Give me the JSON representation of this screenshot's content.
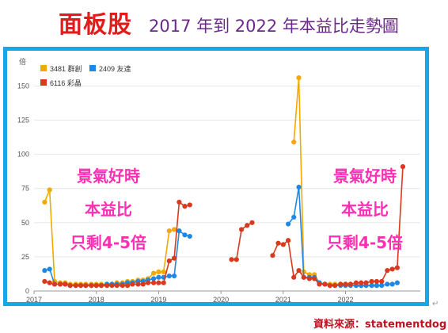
{
  "header": {
    "title": "面板股",
    "subtitle": "2017 年到 2022 年本益比走勢圖",
    "paragraph_mark": "↵"
  },
  "source": {
    "text": "資料來源：statementdog",
    "paragraph_mark": "↵"
  },
  "chart_data": {
    "type": "line",
    "ylabel": "倍",
    "xlabel": "",
    "ylim": [
      0,
      170
    ],
    "y_ticks": [
      0,
      25,
      50,
      75,
      100,
      125,
      150
    ],
    "xlim": [
      2017,
      2023.2
    ],
    "x_ticks": [
      "2017",
      "2018",
      "2019",
      "2020",
      "2021",
      "2022"
    ],
    "grid": true,
    "legend_position": "top-left",
    "annotations": [
      {
        "lines": [
          "景氣好時",
          "本益比",
          "只剩4-5倍"
        ],
        "position": "left"
      },
      {
        "lines": [
          "景氣好時",
          "本益比",
          "只剩4-5倍"
        ],
        "position": "right"
      }
    ],
    "series": [
      {
        "name": "3481 群創",
        "color": "#f2a900",
        "points": [
          [
            2017.17,
            65
          ],
          [
            2017.25,
            74
          ],
          [
            2017.33,
            7
          ],
          [
            2017.42,
            6
          ],
          [
            2017.5,
            6
          ],
          [
            2017.58,
            5
          ],
          [
            2017.67,
            5
          ],
          [
            2017.75,
            5
          ],
          [
            2017.83,
            5
          ],
          [
            2017.92,
            5
          ],
          [
            2018.0,
            5
          ],
          [
            2018.08,
            5
          ],
          [
            2018.17,
            5
          ],
          [
            2018.25,
            5
          ],
          [
            2018.33,
            6
          ],
          [
            2018.42,
            6
          ],
          [
            2018.5,
            7
          ],
          [
            2018.58,
            7
          ],
          [
            2018.67,
            8
          ],
          [
            2018.75,
            8
          ],
          [
            2018.83,
            9
          ],
          [
            2018.92,
            13
          ],
          [
            2019.0,
            14
          ],
          [
            2019.08,
            14
          ],
          [
            2019.17,
            44
          ],
          [
            2019.25,
            45
          ],
          [
            2019.33,
            44
          ],
          null,
          [
            2021.17,
            109
          ],
          [
            2021.25,
            156
          ],
          [
            2021.33,
            14
          ],
          [
            2021.42,
            12
          ],
          [
            2021.5,
            12
          ],
          [
            2021.58,
            6
          ],
          [
            2021.67,
            5
          ],
          [
            2021.75,
            5
          ],
          [
            2021.83,
            5
          ],
          [
            2021.92,
            5
          ],
          [
            2022.0,
            5
          ],
          [
            2022.08,
            5
          ],
          [
            2022.17,
            4
          ],
          [
            2022.25,
            4
          ],
          [
            2022.33,
            4
          ],
          [
            2022.42,
            4
          ],
          [
            2022.5,
            4
          ]
        ]
      },
      {
        "name": "2409 友達",
        "color": "#1e88e5",
        "points": [
          [
            2017.17,
            15
          ],
          [
            2017.25,
            16
          ],
          [
            2017.33,
            5
          ],
          [
            2017.42,
            5
          ],
          [
            2017.5,
            5
          ],
          [
            2017.58,
            4
          ],
          [
            2017.67,
            4
          ],
          [
            2017.75,
            4
          ],
          [
            2017.83,
            4
          ],
          [
            2017.92,
            4
          ],
          [
            2018.0,
            4
          ],
          [
            2018.08,
            4
          ],
          [
            2018.17,
            5
          ],
          [
            2018.25,
            5
          ],
          [
            2018.33,
            5
          ],
          [
            2018.42,
            5
          ],
          [
            2018.5,
            6
          ],
          [
            2018.58,
            6
          ],
          [
            2018.67,
            7
          ],
          [
            2018.75,
            7
          ],
          [
            2018.83,
            8
          ],
          [
            2018.92,
            9
          ],
          [
            2019.0,
            10
          ],
          [
            2019.08,
            10
          ],
          [
            2019.17,
            11
          ],
          [
            2019.25,
            11
          ],
          [
            2019.33,
            44
          ],
          [
            2019.42,
            41
          ],
          [
            2019.5,
            40
          ],
          null,
          [
            2021.08,
            49
          ],
          [
            2021.17,
            54
          ],
          [
            2021.25,
            76
          ],
          [
            2021.33,
            10
          ],
          [
            2021.42,
            10
          ],
          [
            2021.5,
            10
          ],
          [
            2021.58,
            6
          ],
          [
            2021.67,
            5
          ],
          [
            2021.75,
            4
          ],
          [
            2021.83,
            4
          ],
          [
            2021.92,
            4
          ],
          [
            2022.0,
            4
          ],
          [
            2022.08,
            4
          ],
          [
            2022.17,
            4
          ],
          [
            2022.25,
            4
          ],
          [
            2022.33,
            4
          ],
          [
            2022.42,
            4
          ],
          [
            2022.5,
            4
          ],
          [
            2022.58,
            4
          ],
          [
            2022.67,
            5
          ],
          [
            2022.75,
            5
          ],
          [
            2022.83,
            6
          ]
        ]
      },
      {
        "name": "6116 彩晶",
        "color": "#d9391d",
        "points": [
          [
            2017.17,
            7
          ],
          [
            2017.25,
            6
          ],
          [
            2017.33,
            5
          ],
          [
            2017.42,
            5
          ],
          [
            2017.5,
            5
          ],
          [
            2017.58,
            4
          ],
          [
            2017.67,
            4
          ],
          [
            2017.75,
            4
          ],
          [
            2017.83,
            4
          ],
          [
            2017.92,
            4
          ],
          [
            2018.0,
            4
          ],
          [
            2018.08,
            4
          ],
          [
            2018.17,
            4
          ],
          [
            2018.25,
            4
          ],
          [
            2018.33,
            4
          ],
          [
            2018.42,
            4
          ],
          [
            2018.5,
            4
          ],
          [
            2018.58,
            5
          ],
          [
            2018.67,
            5
          ],
          [
            2018.75,
            5
          ],
          [
            2018.83,
            6
          ],
          [
            2018.92,
            6
          ],
          [
            2019.0,
            6
          ],
          [
            2019.08,
            6
          ],
          [
            2019.17,
            22
          ],
          [
            2019.25,
            24
          ],
          [
            2019.33,
            65
          ],
          [
            2019.42,
            62
          ],
          [
            2019.5,
            63
          ],
          null,
          [
            2020.17,
            23
          ],
          [
            2020.25,
            23
          ],
          [
            2020.33,
            45
          ],
          [
            2020.42,
            48
          ],
          [
            2020.5,
            50
          ],
          null,
          [
            2020.83,
            26
          ],
          [
            2020.92,
            35
          ],
          [
            2021.0,
            34
          ],
          [
            2021.08,
            37
          ],
          [
            2021.17,
            10
          ],
          [
            2021.25,
            15
          ],
          [
            2021.33,
            10
          ],
          [
            2021.42,
            9
          ],
          [
            2021.5,
            9
          ],
          [
            2021.58,
            5
          ],
          [
            2021.67,
            5
          ],
          [
            2021.75,
            4
          ],
          [
            2021.83,
            4
          ],
          [
            2021.92,
            5
          ],
          [
            2022.0,
            5
          ],
          [
            2022.08,
            5
          ],
          [
            2022.17,
            6
          ],
          [
            2022.25,
            6
          ],
          [
            2022.33,
            6
          ],
          [
            2022.42,
            7
          ],
          [
            2022.5,
            7
          ],
          [
            2022.58,
            7
          ],
          [
            2022.67,
            15
          ],
          [
            2022.75,
            16
          ],
          [
            2022.83,
            17
          ],
          [
            2022.92,
            91
          ]
        ]
      }
    ]
  }
}
